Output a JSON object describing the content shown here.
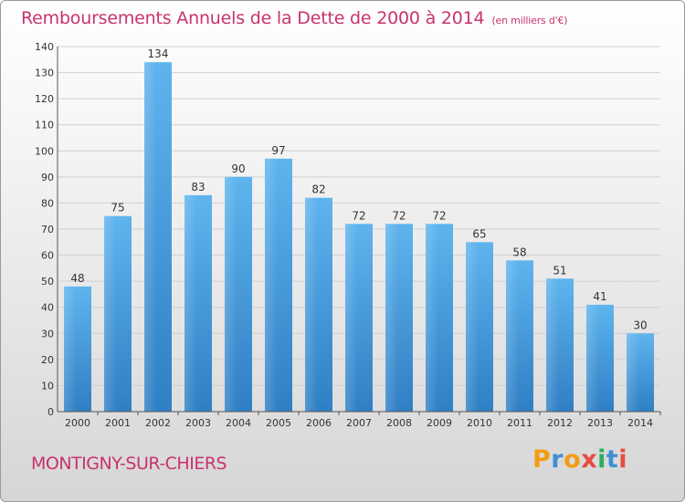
{
  "chart_data": {
    "type": "bar",
    "title": "Remboursements Annuels de la Dette de 2000 à 2014",
    "subtitle": "(en milliers d'€)",
    "categories": [
      "2000",
      "2001",
      "2002",
      "2003",
      "2004",
      "2005",
      "2006",
      "2007",
      "2008",
      "2009",
      "2010",
      "2011",
      "2012",
      "2013",
      "2014"
    ],
    "values": [
      48,
      75,
      134,
      83,
      90,
      97,
      82,
      72,
      72,
      72,
      65,
      58,
      51,
      41,
      30
    ],
    "ylim": [
      0,
      140
    ],
    "yticks": [
      0,
      10,
      20,
      30,
      40,
      50,
      60,
      70,
      80,
      90,
      100,
      110,
      120,
      130,
      140
    ],
    "grid": true,
    "bar_color": "#4a9ee0"
  },
  "commune": "MONTIGNY-SUR-CHIERS",
  "logo": {
    "text": "Proxiti",
    "letters": [
      "P",
      "r",
      "o",
      "x",
      "i",
      "t",
      "i"
    ],
    "colors": [
      "#f39c12",
      "#3f8fd2",
      "#f39c12",
      "#e74c3c",
      "#27ae60",
      "#3f8fd2",
      "#e74c3c"
    ]
  },
  "colors": {
    "title": "#c8336e",
    "grid": "#d0d0d0"
  }
}
